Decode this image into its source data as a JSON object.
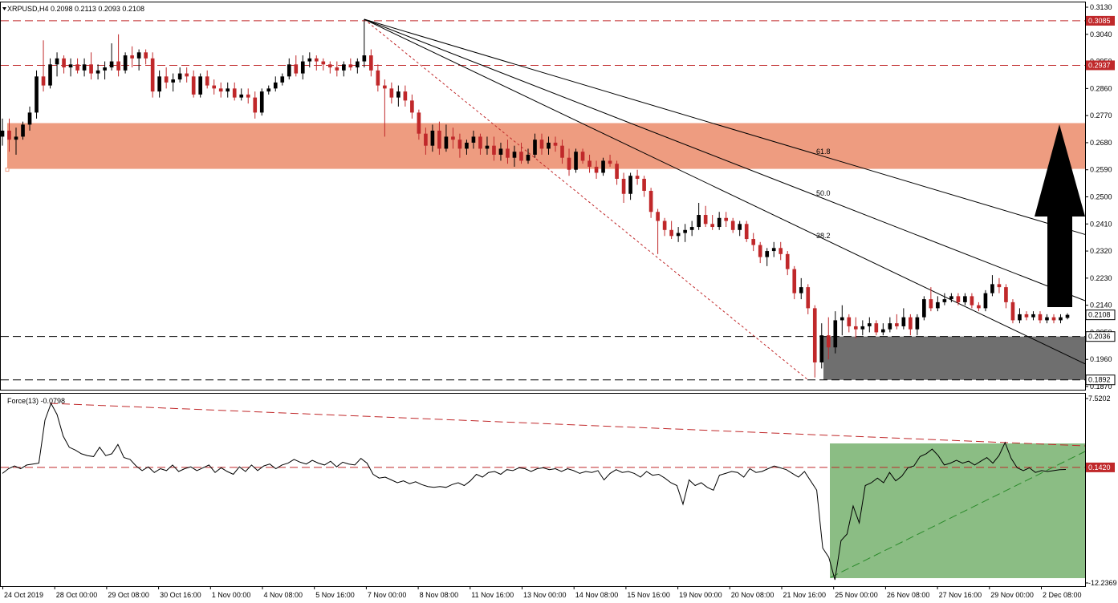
{
  "colors": {
    "bull": "#000000",
    "bear": "#c0282a",
    "resistance_zone": "#ee9c80",
    "support_zone": "#6f6f6f",
    "force_zone": "#8bbd84",
    "level_line": "#c0282a",
    "tag_bg": "#c0282a"
  },
  "chart_data": [
    {
      "type": "candlestick",
      "title": "XRPUSD,H4  0.2098 0.2113 0.2093 0.2108",
      "symbol": "XRPUSD,H4",
      "ohlc_header": "0.2098 0.2113 0.2093 0.2108",
      "ylim": [
        0.187,
        0.313
      ],
      "y_ticks": [
        "0.3130",
        "0.3040",
        "0.2950",
        "0.2860",
        "0.2770",
        "0.2680",
        "0.2590",
        "0.2500",
        "0.2410",
        "0.2320",
        "0.2230",
        "0.2140",
        "0.2050",
        "0.1960",
        "0.1870"
      ],
      "x_labels": [
        "24 Oct 2019",
        "28 Oct 00:00",
        "29 Oct 08:00",
        "30 Oct 16:00",
        "1 Nov 00:00",
        "4 Nov 08:00",
        "5 Nov 16:00",
        "7 Nov 00:00",
        "8 Nov 08:00",
        "11 Nov 16:00",
        "13 Nov 00:00",
        "14 Nov 08:00",
        "15 Nov 16:00",
        "19 Nov 00:00",
        "20 Nov 08:00",
        "21 Nov 16:00",
        "25 Nov 00:00",
        "26 Nov 08:00",
        "27 Nov 16:00",
        "29 Nov 00:00",
        "2 Dec 08:00"
      ],
      "last_price_tag": "0.2108",
      "horizontal_levels": [
        {
          "value": 0.3085,
          "tag": "0.3085",
          "style": "red-dashed"
        },
        {
          "value": 0.2937,
          "tag": "0.2937",
          "style": "red-dashed"
        },
        {
          "value": 0.2036,
          "tag": "0.2036",
          "style": "black-dashed"
        },
        {
          "value": 0.1892,
          "tag": "0.1892",
          "style": "black-dashed"
        }
      ],
      "zones": [
        {
          "name": "resistance",
          "from": 0.2593,
          "to": 0.2745
        },
        {
          "name": "support",
          "from": 0.1892,
          "to": 0.2036
        }
      ],
      "fibonacci_fan": {
        "levels": [
          "38.2",
          "50.0",
          "61.8"
        ]
      },
      "annotation": "upward arrow",
      "candles_ohlc": [
        [
          0.27,
          0.276,
          0.267,
          0.272
        ],
        [
          0.272,
          0.276,
          0.265,
          0.269
        ],
        [
          0.269,
          0.273,
          0.264,
          0.27
        ],
        [
          0.27,
          0.275,
          0.269,
          0.274
        ],
        [
          0.274,
          0.28,
          0.272,
          0.278
        ],
        [
          0.278,
          0.292,
          0.276,
          0.29
        ],
        [
          0.29,
          0.302,
          0.285,
          0.287
        ],
        [
          0.287,
          0.296,
          0.286,
          0.294
        ],
        [
          0.294,
          0.298,
          0.29,
          0.296
        ],
        [
          0.296,
          0.297,
          0.291,
          0.293
        ],
        [
          0.293,
          0.296,
          0.29,
          0.294
        ],
        [
          0.294,
          0.296,
          0.291,
          0.292
        ],
        [
          0.292,
          0.296,
          0.29,
          0.294
        ],
        [
          0.294,
          0.298,
          0.289,
          0.291
        ],
        [
          0.291,
          0.294,
          0.289,
          0.292
        ],
        [
          0.292,
          0.295,
          0.289,
          0.293
        ],
        [
          0.293,
          0.301,
          0.292,
          0.295
        ],
        [
          0.295,
          0.304,
          0.29,
          0.292
        ],
        [
          0.292,
          0.298,
          0.291,
          0.297
        ],
        [
          0.297,
          0.3,
          0.293,
          0.296
        ],
        [
          0.296,
          0.299,
          0.292,
          0.298
        ],
        [
          0.298,
          0.299,
          0.294,
          0.296
        ],
        [
          0.296,
          0.298,
          0.283,
          0.285
        ],
        [
          0.285,
          0.292,
          0.283,
          0.29
        ],
        [
          0.29,
          0.293,
          0.286,
          0.288
        ],
        [
          0.288,
          0.291,
          0.285,
          0.289
        ],
        [
          0.289,
          0.293,
          0.288,
          0.291
        ],
        [
          0.291,
          0.293,
          0.288,
          0.29
        ],
        [
          0.29,
          0.292,
          0.283,
          0.284
        ],
        [
          0.284,
          0.291,
          0.283,
          0.29
        ],
        [
          0.29,
          0.292,
          0.286,
          0.287
        ],
        [
          0.287,
          0.289,
          0.284,
          0.286
        ],
        [
          0.286,
          0.288,
          0.283,
          0.285
        ],
        [
          0.285,
          0.288,
          0.283,
          0.286
        ],
        [
          0.286,
          0.288,
          0.282,
          0.283
        ],
        [
          0.283,
          0.286,
          0.282,
          0.284
        ],
        [
          0.284,
          0.286,
          0.281,
          0.283
        ],
        [
          0.283,
          0.285,
          0.276,
          0.278
        ],
        [
          0.278,
          0.286,
          0.277,
          0.285
        ],
        [
          0.285,
          0.287,
          0.284,
          0.286
        ],
        [
          0.286,
          0.29,
          0.285,
          0.288
        ],
        [
          0.288,
          0.291,
          0.287,
          0.29
        ],
        [
          0.29,
          0.296,
          0.289,
          0.294
        ],
        [
          0.294,
          0.297,
          0.29,
          0.291
        ],
        [
          0.291,
          0.297,
          0.289,
          0.295
        ],
        [
          0.295,
          0.298,
          0.293,
          0.296
        ],
        [
          0.296,
          0.297,
          0.292,
          0.295
        ],
        [
          0.295,
          0.296,
          0.292,
          0.294
        ],
        [
          0.294,
          0.295,
          0.291,
          0.293
        ],
        [
          0.293,
          0.295,
          0.29,
          0.292
        ],
        [
          0.292,
          0.295,
          0.29,
          0.294
        ],
        [
          0.294,
          0.296,
          0.292,
          0.293
        ],
        [
          0.293,
          0.296,
          0.291,
          0.295
        ],
        [
          0.295,
          0.309,
          0.293,
          0.297
        ],
        [
          0.297,
          0.299,
          0.29,
          0.292
        ],
        [
          0.292,
          0.294,
          0.285,
          0.287
        ],
        [
          0.287,
          0.289,
          0.27,
          0.286
        ],
        [
          0.286,
          0.288,
          0.281,
          0.283
        ],
        [
          0.283,
          0.287,
          0.28,
          0.285
        ],
        [
          0.285,
          0.287,
          0.28,
          0.282
        ],
        [
          0.282,
          0.284,
          0.276,
          0.278
        ],
        [
          0.278,
          0.279,
          0.269,
          0.271
        ],
        [
          0.271,
          0.273,
          0.264,
          0.267
        ],
        [
          0.267,
          0.274,
          0.265,
          0.272
        ],
        [
          0.272,
          0.275,
          0.264,
          0.266
        ],
        [
          0.266,
          0.274,
          0.265,
          0.27
        ],
        [
          0.27,
          0.273,
          0.266,
          0.269
        ],
        [
          0.269,
          0.271,
          0.263,
          0.266
        ],
        [
          0.266,
          0.269,
          0.264,
          0.268
        ],
        [
          0.268,
          0.272,
          0.266,
          0.27
        ],
        [
          0.27,
          0.271,
          0.264,
          0.266
        ],
        [
          0.266,
          0.27,
          0.264,
          0.267
        ],
        [
          0.267,
          0.27,
          0.262,
          0.264
        ],
        [
          0.264,
          0.268,
          0.262,
          0.266
        ],
        [
          0.266,
          0.269,
          0.261,
          0.263
        ],
        [
          0.263,
          0.267,
          0.26,
          0.265
        ],
        [
          0.265,
          0.268,
          0.261,
          0.262
        ],
        [
          0.262,
          0.266,
          0.261,
          0.264
        ],
        [
          0.264,
          0.271,
          0.263,
          0.269
        ],
        [
          0.269,
          0.271,
          0.264,
          0.266
        ],
        [
          0.266,
          0.27,
          0.264,
          0.268
        ],
        [
          0.268,
          0.27,
          0.265,
          0.267
        ],
        [
          0.267,
          0.269,
          0.261,
          0.263
        ],
        [
          0.263,
          0.266,
          0.257,
          0.259
        ],
        [
          0.259,
          0.266,
          0.258,
          0.265
        ],
        [
          0.265,
          0.266,
          0.261,
          0.262
        ],
        [
          0.262,
          0.264,
          0.258,
          0.26
        ],
        [
          0.26,
          0.262,
          0.256,
          0.258
        ],
        [
          0.258,
          0.263,
          0.257,
          0.262
        ],
        [
          0.262,
          0.264,
          0.26,
          0.261
        ],
        [
          0.261,
          0.262,
          0.254,
          0.256
        ],
        [
          0.256,
          0.258,
          0.248,
          0.251
        ],
        [
          0.251,
          0.258,
          0.249,
          0.257
        ],
        [
          0.257,
          0.259,
          0.254,
          0.256
        ],
        [
          0.256,
          0.257,
          0.25,
          0.252
        ],
        [
          0.252,
          0.253,
          0.243,
          0.245
        ],
        [
          0.245,
          0.246,
          0.231,
          0.242
        ],
        [
          0.242,
          0.243,
          0.237,
          0.239
        ],
        [
          0.239,
          0.242,
          0.236,
          0.237
        ],
        [
          0.237,
          0.24,
          0.235,
          0.238
        ],
        [
          0.238,
          0.241,
          0.235,
          0.239
        ],
        [
          0.239,
          0.242,
          0.237,
          0.24
        ],
        [
          0.24,
          0.248,
          0.239,
          0.244
        ],
        [
          0.244,
          0.247,
          0.24,
          0.241
        ],
        [
          0.241,
          0.244,
          0.239,
          0.24
        ],
        [
          0.24,
          0.245,
          0.239,
          0.243
        ],
        [
          0.243,
          0.245,
          0.24,
          0.242
        ],
        [
          0.242,
          0.243,
          0.238,
          0.239
        ],
        [
          0.239,
          0.242,
          0.237,
          0.241
        ],
        [
          0.241,
          0.242,
          0.235,
          0.236
        ],
        [
          0.236,
          0.238,
          0.232,
          0.234
        ],
        [
          0.234,
          0.235,
          0.228,
          0.23
        ],
        [
          0.23,
          0.233,
          0.227,
          0.232
        ],
        [
          0.232,
          0.235,
          0.23,
          0.233
        ],
        [
          0.233,
          0.235,
          0.229,
          0.231
        ],
        [
          0.231,
          0.232,
          0.224,
          0.226
        ],
        [
          0.226,
          0.227,
          0.216,
          0.218
        ],
        [
          0.218,
          0.223,
          0.216,
          0.22
        ],
        [
          0.22,
          0.221,
          0.211,
          0.213
        ],
        [
          0.213,
          0.214,
          0.19,
          0.195
        ],
        [
          0.195,
          0.208,
          0.193,
          0.204
        ],
        [
          0.204,
          0.21,
          0.196,
          0.2
        ],
        [
          0.2,
          0.212,
          0.198,
          0.209
        ],
        [
          0.209,
          0.214,
          0.204,
          0.21
        ],
        [
          0.21,
          0.211,
          0.205,
          0.207
        ],
        [
          0.207,
          0.21,
          0.203,
          0.206
        ],
        [
          0.206,
          0.209,
          0.204,
          0.207
        ],
        [
          0.207,
          0.21,
          0.205,
          0.208
        ],
        [
          0.208,
          0.209,
          0.204,
          0.205
        ],
        [
          0.205,
          0.208,
          0.204,
          0.206
        ],
        [
          0.206,
          0.21,
          0.205,
          0.208
        ],
        [
          0.208,
          0.211,
          0.206,
          0.207
        ],
        [
          0.207,
          0.213,
          0.206,
          0.21
        ],
        [
          0.21,
          0.211,
          0.204,
          0.206
        ],
        [
          0.206,
          0.211,
          0.204,
          0.21
        ],
        [
          0.21,
          0.217,
          0.209,
          0.216
        ],
        [
          0.216,
          0.22,
          0.212,
          0.213
        ],
        [
          0.213,
          0.217,
          0.212,
          0.215
        ],
        [
          0.215,
          0.218,
          0.214,
          0.216
        ],
        [
          0.216,
          0.218,
          0.215,
          0.217
        ],
        [
          0.217,
          0.218,
          0.214,
          0.215
        ],
        [
          0.215,
          0.218,
          0.214,
          0.217
        ],
        [
          0.217,
          0.218,
          0.213,
          0.214
        ],
        [
          0.214,
          0.215,
          0.212,
          0.213
        ],
        [
          0.213,
          0.219,
          0.212,
          0.218
        ],
        [
          0.218,
          0.224,
          0.217,
          0.221
        ],
        [
          0.221,
          0.223,
          0.218,
          0.22
        ],
        [
          0.22,
          0.221,
          0.213,
          0.215
        ],
        [
          0.215,
          0.216,
          0.208,
          0.209
        ],
        [
          0.209,
          0.213,
          0.208,
          0.211
        ],
        [
          0.211,
          0.212,
          0.209,
          0.21
        ],
        [
          0.21,
          0.212,
          0.209,
          0.211
        ],
        [
          0.211,
          0.212,
          0.208,
          0.209
        ],
        [
          0.209,
          0.211,
          0.208,
          0.21
        ],
        [
          0.21,
          0.211,
          0.208,
          0.209
        ],
        [
          0.209,
          0.211,
          0.208,
          0.21
        ],
        [
          0.2098,
          0.2113,
          0.2093,
          0.2108
        ]
      ]
    },
    {
      "type": "line",
      "title": "Force(13) -0.0798",
      "name": "Force(13)",
      "value_text": "-0.0798",
      "y_ticks": [
        "7.5202",
        "-12.2369"
      ],
      "ylim": [
        -12.2369,
        7.5202
      ],
      "level_tag": "0.1420",
      "level_value": 0.142,
      "values": [
        -0.5,
        0.0,
        0.3,
        0.0,
        0.4,
        0.5,
        0.6,
        5.2,
        7.0,
        5.8,
        3.5,
        2.3,
        2.0,
        1.6,
        1.4,
        1.3,
        2.3,
        1.4,
        1.6,
        2.6,
        1.2,
        1.0,
        0.3,
        -0.2,
        0.2,
        -0.4,
        0.0,
        -0.2,
        0.4,
        -0.3,
        0.0,
        0.2,
        -0.2,
        0.1,
        0.4,
        -0.4,
        0.1,
        -0.3,
        -0.6,
        0.2,
        -0.3,
        0.4,
        -0.2,
        0.3,
        0.5,
        0.0,
        0.4,
        0.6,
        1.0,
        0.7,
        0.5,
        0.9,
        0.6,
        0.4,
        0.8,
        0.2,
        0.7,
        0.5,
        0.4,
        1.1,
        0.6,
        -0.6,
        -1.0,
        -0.9,
        -1.2,
        -1.5,
        -1.3,
        -1.6,
        -1.4,
        -1.7,
        -1.9,
        -2.0,
        -1.9,
        -2.0,
        -1.7,
        -1.5,
        -1.8,
        -1.3,
        -0.6,
        -0.9,
        -0.4,
        -0.3,
        -0.6,
        -0.1,
        -0.2,
        0.1,
        0.0,
        -0.3,
        0.0,
        0.1,
        -0.1,
        0.0,
        -0.3,
        0.0,
        -0.2,
        -0.5,
        -0.3,
        -0.4,
        -0.2,
        -1.2,
        -0.5,
        -0.1,
        -0.4,
        -0.3,
        -0.5,
        -0.9,
        -0.3,
        -0.7,
        -0.6,
        -1.0,
        -1.5,
        -1.8,
        -3.8,
        -1.2,
        -1.8,
        -1.5,
        -2.0,
        -2.3,
        -0.7,
        -0.5,
        -0.3,
        -0.4,
        -0.9,
        0.0,
        -0.4,
        -0.3,
        0.0,
        0.3,
        0.1,
        -0.1,
        -0.5,
        -0.9,
        -0.3,
        -1.3,
        -2.3,
        -8.5,
        -9.5,
        -11.9,
        -7.7,
        -7.0,
        -4.0,
        -5.8,
        -1.8,
        -1.5,
        -1.0,
        -1.5,
        -0.4,
        -1.3,
        -0.8,
        0.1,
        0.3,
        1.3,
        1.6,
        2.1,
        1.4,
        0.4,
        0.6,
        0.9,
        0.6,
        0.8,
        0.4,
        0.8,
        1.2,
        0.6,
        1.4,
        2.8,
        1.1,
        0.1,
        -0.2,
        0.1,
        -0.4,
        -0.2,
        -0.3,
        -0.2,
        -0.1,
        -0.08
      ]
    }
  ]
}
